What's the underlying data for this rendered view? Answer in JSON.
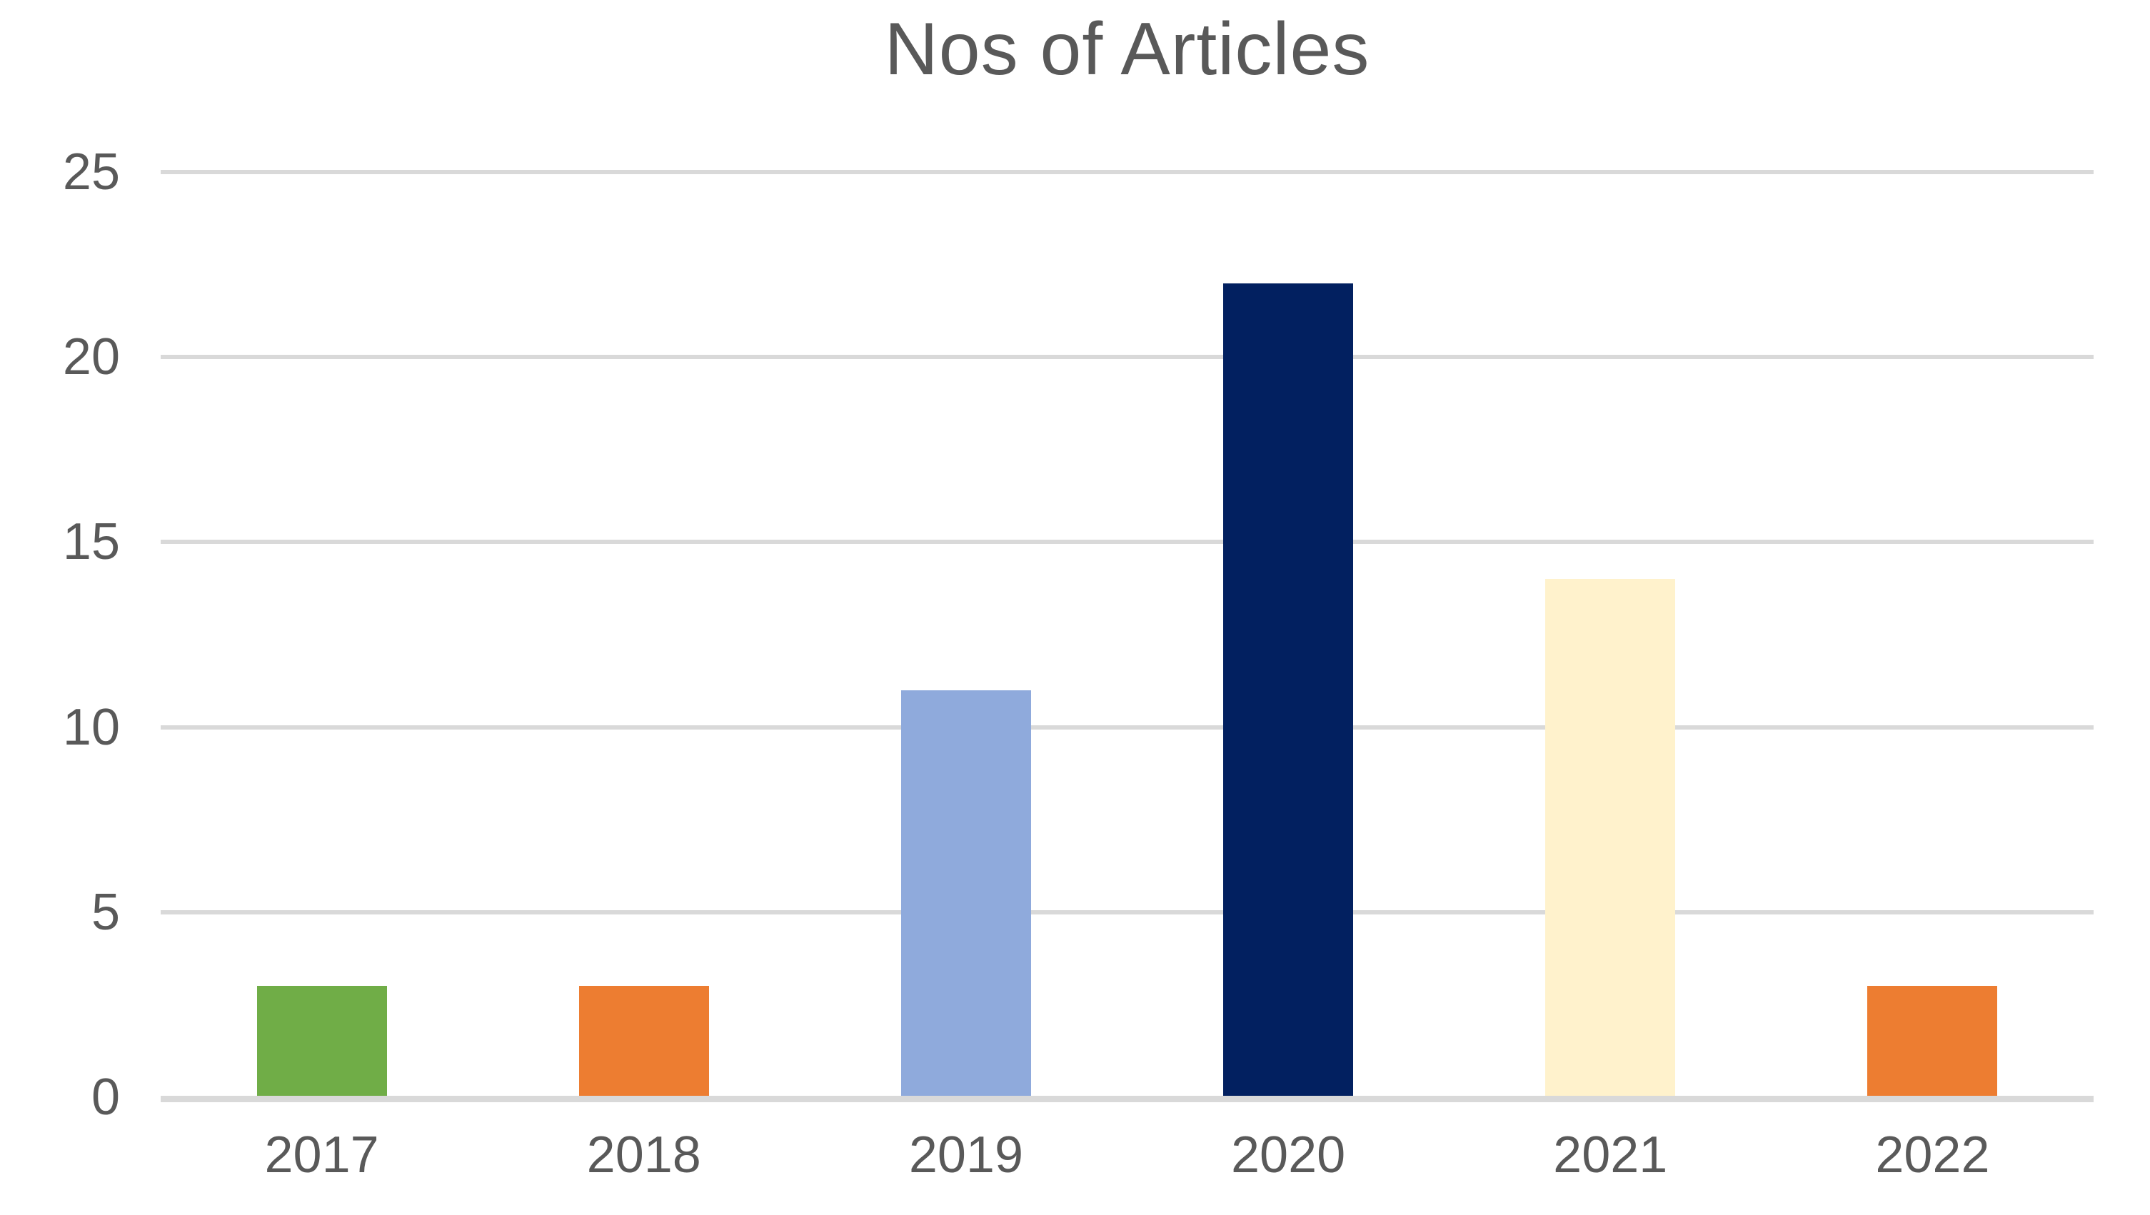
{
  "chart_data": {
    "type": "bar",
    "title": "Nos of Articles",
    "categories": [
      "2017",
      "2018",
      "2019",
      "2020",
      "2021",
      "2022"
    ],
    "values": [
      3,
      3,
      11,
      22,
      14,
      3
    ],
    "bar_colors": [
      "#70AD47",
      "#ED7D31",
      "#8FAADC",
      "#022060",
      "#FFF2CC",
      "#ED7D31"
    ],
    "y_ticks": [
      0,
      5,
      10,
      15,
      20,
      25
    ],
    "y_tick_labels": [
      "0",
      "5",
      "10",
      "15",
      "20",
      "25"
    ],
    "ylim": [
      0,
      25
    ],
    "xlabel": "",
    "ylabel": "",
    "grid": true,
    "legend": false,
    "colors": {
      "title_text": "#595959",
      "tick_text": "#595959",
      "gridline": "#D9D9D9",
      "axis_line": "#D9D9D9",
      "background": "#FFFFFF"
    }
  }
}
